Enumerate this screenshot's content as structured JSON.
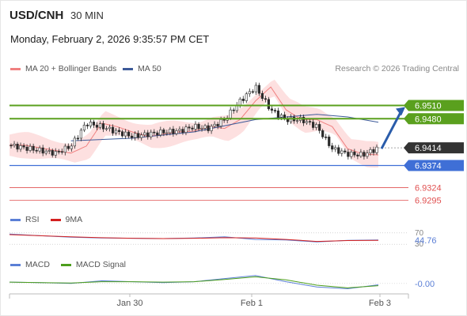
{
  "header": {
    "symbol": "USD/CNH",
    "timeframe": "30 MIN",
    "datetime": "Monday, February 2, 2026 9:35:57 PM CET"
  },
  "legend": {
    "bollinger": "MA 20 + Bollinger Bands",
    "ma50": "MA 50",
    "source": "Research © 2026 Trading Central"
  },
  "colors": {
    "candle": "#2a2a2a",
    "bollinger_fill": "#fde0e0",
    "ma20": "#f08080",
    "ma50": "#3d5a99",
    "resistance": "#5aa01e",
    "pivot": "#3f6fd6",
    "support": "#e05050",
    "last_price": "#333333",
    "arrow": "#2a5caa",
    "rsi": "#5b7fd6",
    "rsi_ma": "#d42020",
    "macd": "#5b7fd6",
    "macd_signal": "#4c9e1c"
  },
  "price_levels": [
    {
      "label": "6.9510",
      "value": 6.951,
      "kind": "resistance"
    },
    {
      "label": "6.9480",
      "value": 6.948,
      "kind": "resistance"
    },
    {
      "label": "6.9414",
      "value": 6.9414,
      "kind": "last"
    },
    {
      "label": "6.9374",
      "value": 6.9374,
      "kind": "pivot"
    },
    {
      "label": "6.9324",
      "value": 6.9324,
      "kind": "support"
    },
    {
      "label": "6.9295",
      "value": 6.9295,
      "kind": "support"
    }
  ],
  "chart_data": {
    "type": "line",
    "series": [
      {
        "name": "USD/CNH",
        "x": [
          0,
          5,
          10,
          15,
          20,
          25,
          30,
          35,
          40,
          45,
          50,
          55,
          60,
          65,
          70,
          75,
          80,
          85,
          90,
          95,
          100,
          105,
          110,
          115,
          120
        ],
        "values": [
          6.942,
          6.9414,
          6.9408,
          6.9402,
          6.9418,
          6.947,
          6.9462,
          6.945,
          6.944,
          6.9445,
          6.945,
          6.9452,
          6.9462,
          6.9458,
          6.9478,
          6.952,
          6.9552,
          6.95,
          6.9478,
          6.9478,
          6.9462,
          6.9412,
          6.94,
          6.9398,
          6.9414
        ]
      },
      {
        "name": "MA 50",
        "x": [
          20,
          40,
          60,
          80,
          100,
          110,
          120
        ],
        "values": [
          6.943,
          6.9436,
          6.945,
          6.9478,
          6.949,
          6.9484,
          6.9472
        ]
      }
    ],
    "x_tick_labels": [
      "Jan 30",
      "Feb 1",
      "Feb 3"
    ],
    "y_range": [
      6.928,
      6.957
    ]
  },
  "rsi": {
    "title": "RSI",
    "ma_label": "9MA",
    "level_high": "70",
    "level_low": "30",
    "value": "44.76",
    "chart_data": {
      "type": "line",
      "series": [
        {
          "name": "RSI",
          "x": [
            0,
            10,
            20,
            30,
            40,
            50,
            60,
            70,
            80,
            90,
            100,
            110,
            120
          ],
          "values": [
            66,
            60,
            55,
            52,
            51,
            50,
            52,
            56,
            47,
            45,
            38,
            44,
            45
          ]
        },
        {
          "name": "9MA",
          "x": [
            0,
            10,
            20,
            30,
            40,
            50,
            60,
            70,
            80,
            90,
            100,
            110,
            120
          ],
          "values": [
            64,
            60,
            56,
            53,
            51,
            50,
            51,
            53,
            52,
            47,
            40,
            43,
            44
          ]
        }
      ],
      "y_range": [
        0,
        100
      ]
    }
  },
  "macd": {
    "title": "MACD",
    "signal_label": "MACD Signal",
    "value": "-0.00",
    "chart_data": {
      "type": "line",
      "series": [
        {
          "name": "MACD",
          "x": [
            0,
            10,
            20,
            30,
            40,
            50,
            60,
            70,
            80,
            90,
            100,
            110,
            120
          ],
          "values": [
            0.0003,
            0.0002,
            0.0,
            0.0006,
            0.0004,
            0.0002,
            0.0004,
            0.0011,
            0.0018,
            0.0004,
            -0.0008,
            -0.0012,
            -0.0003
          ]
        },
        {
          "name": "MACD Signal",
          "x": [
            0,
            10,
            20,
            30,
            40,
            50,
            60,
            70,
            80,
            90,
            100,
            110,
            120
          ],
          "values": [
            0.0003,
            0.0002,
            0.0001,
            0.0004,
            0.0004,
            0.0003,
            0.0004,
            0.0009,
            0.0015,
            0.0008,
            -0.0004,
            -0.001,
            -0.0005
          ]
        }
      ],
      "y_range": [
        -0.002,
        0.003
      ]
    }
  }
}
